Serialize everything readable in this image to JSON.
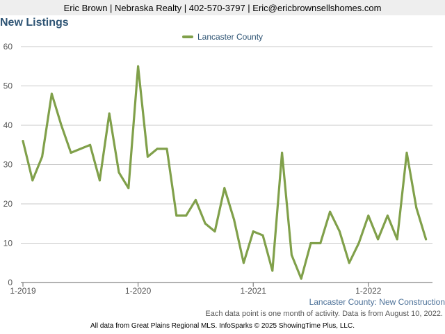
{
  "header": {
    "contact_line": "Eric Brown | Nebraska Realty | 402-570-3797 | Eric@ericbrownsellshomes.com"
  },
  "chart_title": "New Listings",
  "series_caption": "Lancaster County: New Construction",
  "note": "Each data point is one month of activity. Data is from August 10, 2022.",
  "credits": "All data from Great Plains Regional MLS. InfoSparks © 2025 ShowingTime Plus, LLC.",
  "chart_data": {
    "type": "line",
    "title": "New Listings",
    "xlabel": "",
    "ylabel": "",
    "ylim": [
      0,
      60
    ],
    "yticks": [
      0,
      10,
      20,
      30,
      40,
      50,
      60
    ],
    "x_tick_labels": [
      "1-2019",
      "1-2020",
      "1-2021",
      "1-2022"
    ],
    "grid": true,
    "legend_position": "top-center",
    "series": [
      {
        "name": "Lancaster County",
        "color": "#80a04a",
        "x": [
          "2019-01",
          "2019-02",
          "2019-03",
          "2019-04",
          "2019-05",
          "2019-06",
          "2019-07",
          "2019-08",
          "2019-09",
          "2019-10",
          "2019-11",
          "2019-12",
          "2020-01",
          "2020-02",
          "2020-03",
          "2020-04",
          "2020-05",
          "2020-06",
          "2020-07",
          "2020-08",
          "2020-09",
          "2020-10",
          "2020-11",
          "2020-12",
          "2021-01",
          "2021-02",
          "2021-03",
          "2021-04",
          "2021-05",
          "2021-06",
          "2021-07",
          "2021-08",
          "2021-09",
          "2021-10",
          "2021-11",
          "2021-12",
          "2022-01",
          "2022-02",
          "2022-03",
          "2022-04",
          "2022-05",
          "2022-06",
          "2022-07"
        ],
        "values": [
          36,
          26,
          32,
          48,
          40,
          33,
          34,
          35,
          26,
          43,
          28,
          24,
          55,
          32,
          34,
          34,
          17,
          17,
          21,
          15,
          13,
          24,
          16,
          5,
          13,
          12,
          3,
          33,
          7,
          1,
          10,
          10,
          18,
          13,
          5,
          10,
          17,
          11,
          17,
          11,
          33,
          19,
          11
        ]
      }
    ]
  }
}
